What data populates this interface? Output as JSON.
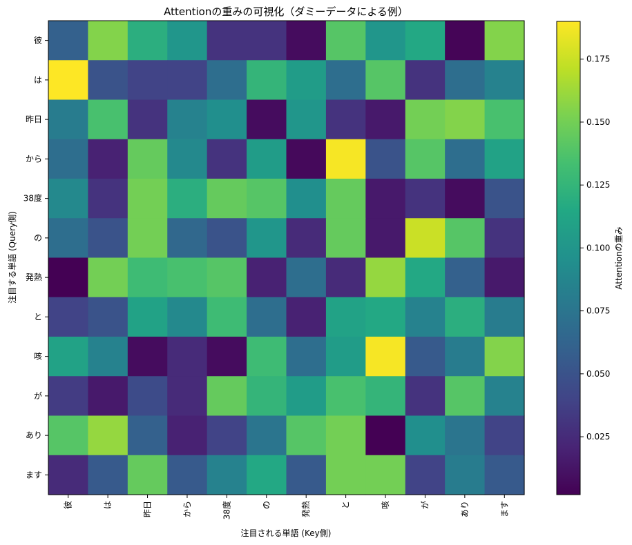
{
  "chart_data": {
    "type": "heatmap",
    "title": "Attentionの重みの可視化（ダミーデータによる例）",
    "xlabel": "注目される単語 (Key側)",
    "ylabel": "注目する単語 (Query側)",
    "colorbar_label": "Attentionの重み",
    "x_categories": [
      "彼",
      "は",
      "昨日",
      "から",
      "38度",
      "の",
      "発熱",
      "と",
      "咳",
      "が",
      "あり",
      "ます"
    ],
    "y_categories": [
      "彼",
      "は",
      "昨日",
      "から",
      "38度",
      "の",
      "発熱",
      "と",
      "咳",
      "が",
      "あり",
      "ます"
    ],
    "colorbar_ticks": [
      0.025,
      0.05,
      0.075,
      0.1,
      0.125,
      0.15,
      0.175
    ],
    "colorbar_tick_labels": [
      "0.025",
      "0.050",
      "0.075",
      "0.100",
      "0.125",
      "0.150",
      "0.175"
    ],
    "vmin": 0.002,
    "vmax": 0.19,
    "colormap": "viridis",
    "values": [
      [
        0.06,
        0.155,
        0.12,
        0.1,
        0.03,
        0.03,
        0.008,
        0.14,
        0.1,
        0.115,
        0.004,
        0.155
      ],
      [
        0.19,
        0.05,
        0.04,
        0.04,
        0.07,
        0.125,
        0.105,
        0.07,
        0.14,
        0.03,
        0.07,
        0.085
      ],
      [
        0.08,
        0.135,
        0.03,
        0.085,
        0.095,
        0.008,
        0.1,
        0.03,
        0.015,
        0.15,
        0.155,
        0.135
      ],
      [
        0.07,
        0.02,
        0.145,
        0.09,
        0.03,
        0.105,
        0.006,
        0.188,
        0.05,
        0.14,
        0.07,
        0.11
      ],
      [
        0.09,
        0.03,
        0.15,
        0.12,
        0.145,
        0.14,
        0.095,
        0.145,
        0.015,
        0.03,
        0.008,
        0.05
      ],
      [
        0.07,
        0.05,
        0.15,
        0.065,
        0.05,
        0.1,
        0.025,
        0.145,
        0.015,
        0.175,
        0.14,
        0.03
      ],
      [
        0.002,
        0.15,
        0.13,
        0.135,
        0.14,
        0.02,
        0.07,
        0.025,
        0.16,
        0.115,
        0.06,
        0.015
      ],
      [
        0.04,
        0.05,
        0.11,
        0.09,
        0.13,
        0.07,
        0.02,
        0.11,
        0.115,
        0.085,
        0.12,
        0.08
      ],
      [
        0.11,
        0.085,
        0.008,
        0.025,
        0.008,
        0.13,
        0.07,
        0.105,
        0.188,
        0.055,
        0.08,
        0.155
      ],
      [
        0.035,
        0.015,
        0.045,
        0.025,
        0.145,
        0.125,
        0.105,
        0.135,
        0.125,
        0.03,
        0.14,
        0.085
      ],
      [
        0.14,
        0.16,
        0.06,
        0.02,
        0.04,
        0.075,
        0.14,
        0.15,
        0.002,
        0.095,
        0.075,
        0.04
      ],
      [
        0.025,
        0.055,
        0.145,
        0.055,
        0.085,
        0.115,
        0.055,
        0.15,
        0.15,
        0.04,
        0.08,
        0.055
      ]
    ]
  }
}
